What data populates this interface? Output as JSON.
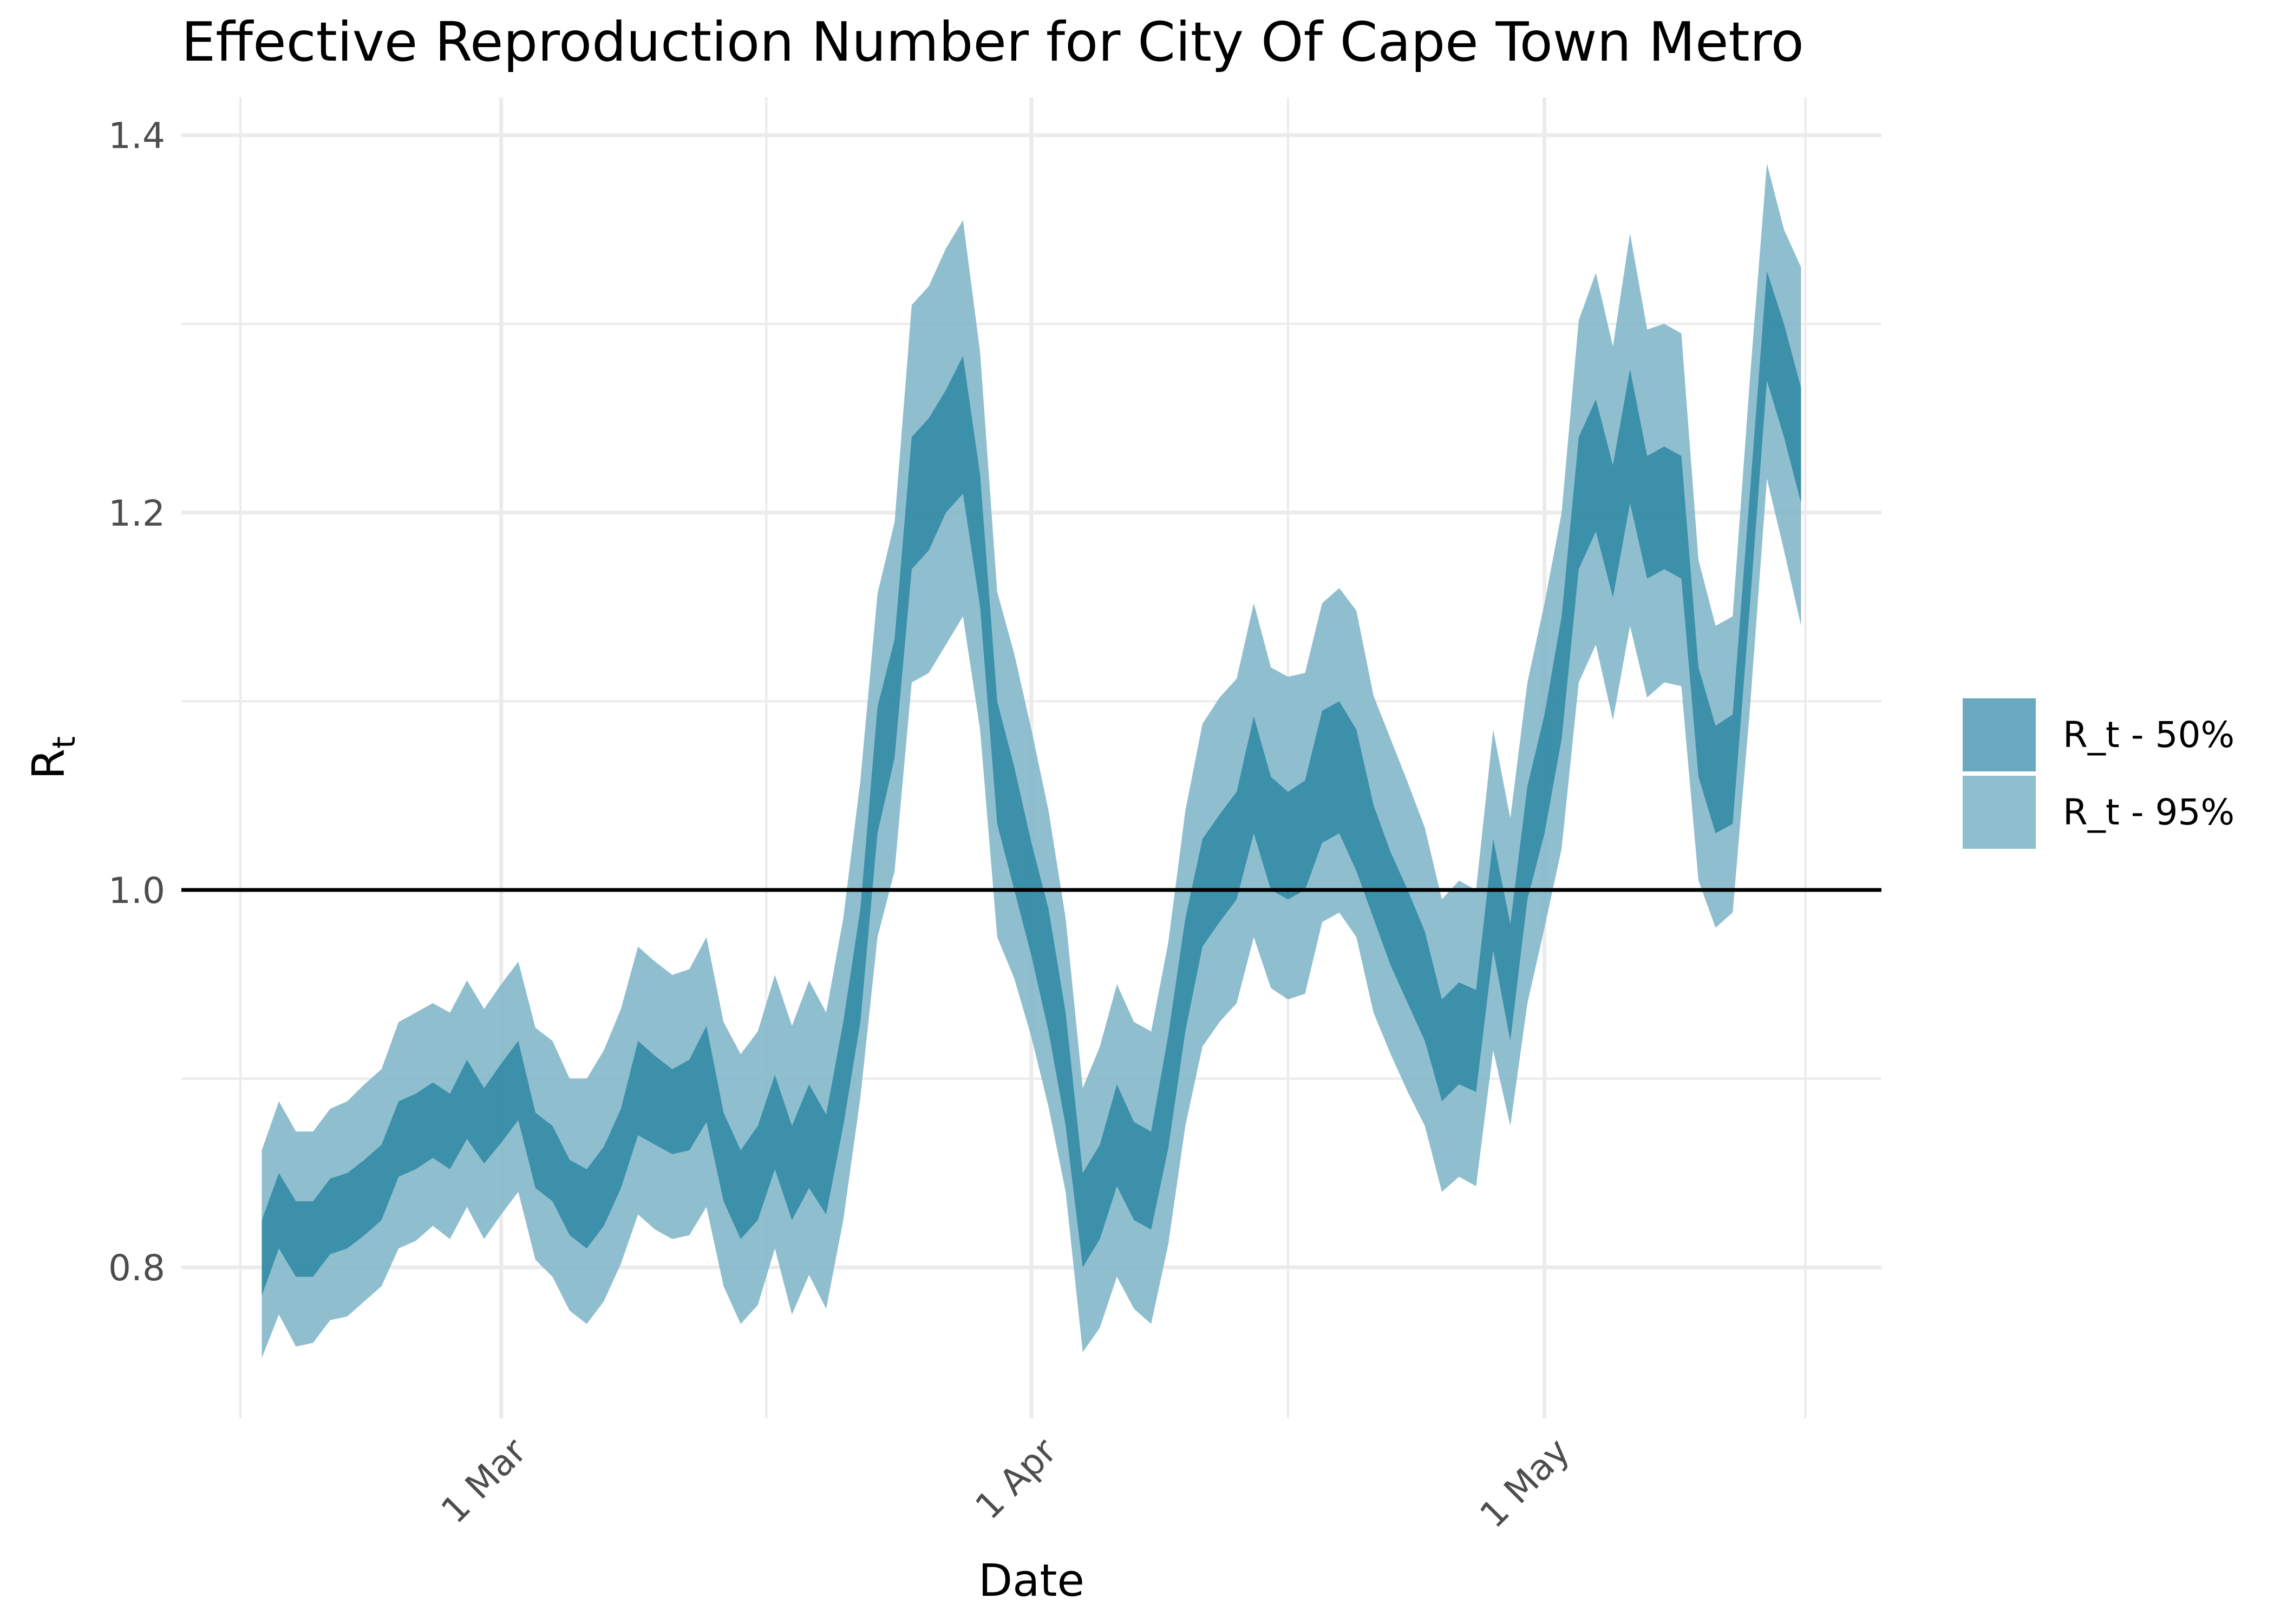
{
  "chart_data": {
    "type": "area",
    "title": "Effective Reproduction Number for City Of Cape Town Metro",
    "xlabel": "Date",
    "ylabel_main": "R",
    "ylabel_sub": "t",
    "x_start": "2021-02-15",
    "ylim": [
      0.72,
      1.42
    ],
    "yticks": [
      0.8,
      1.0,
      1.2,
      1.4
    ],
    "ytick_labels": [
      "0.8",
      "1.0",
      "1.2",
      "1.4"
    ],
    "xticks": [
      {
        "date": "2021-03-01",
        "label": "1 Mar"
      },
      {
        "date": "2021-04-01",
        "label": "1 Apr"
      },
      {
        "date": "2021-05-01",
        "label": "1 May"
      }
    ],
    "reference_line": 1.0,
    "grid": true,
    "legend_position": "right",
    "colors": {
      "band_50": "#2e87a3",
      "band_95": "#7fb6c8",
      "reference": "#000000",
      "grid": "#ebebeb"
    },
    "series": [
      {
        "name": "R_t - 50%",
        "lower": [
          0.785,
          0.81,
          0.795,
          0.795,
          0.807,
          0.81,
          0.817,
          0.825,
          0.848,
          0.852,
          0.858,
          0.852,
          0.868,
          0.855,
          0.866,
          0.878,
          0.842,
          0.835,
          0.817,
          0.81,
          0.822,
          0.842,
          0.87,
          0.865,
          0.86,
          0.862,
          0.877,
          0.835,
          0.815,
          0.825,
          0.852,
          0.825,
          0.842,
          0.828,
          0.875,
          0.93,
          1.03,
          1.07,
          1.17,
          1.18,
          1.2,
          1.21,
          1.15,
          1.035,
          1.0,
          0.965,
          0.925,
          0.875,
          0.8,
          0.815,
          0.843,
          0.825,
          0.82,
          0.863,
          0.925,
          0.97,
          0.983,
          0.995,
          1.03,
          1.0,
          0.995,
          1.0,
          1.025,
          1.03,
          1.01,
          0.985,
          0.96,
          0.94,
          0.92,
          0.888,
          0.897,
          0.893,
          0.968,
          0.92,
          0.995,
          1.03,
          1.08,
          1.17,
          1.19,
          1.155,
          1.205,
          1.165,
          1.17,
          1.165,
          1.06,
          1.03,
          1.035,
          1.15,
          1.27,
          1.24,
          1.205
        ],
        "upper": [
          0.825,
          0.85,
          0.835,
          0.835,
          0.847,
          0.85,
          0.857,
          0.865,
          0.888,
          0.892,
          0.898,
          0.892,
          0.91,
          0.895,
          0.908,
          0.92,
          0.882,
          0.875,
          0.857,
          0.852,
          0.864,
          0.884,
          0.92,
          0.912,
          0.905,
          0.91,
          0.928,
          0.882,
          0.862,
          0.875,
          0.902,
          0.875,
          0.897,
          0.881,
          0.93,
          0.99,
          1.097,
          1.133,
          1.24,
          1.25,
          1.265,
          1.283,
          1.22,
          1.1,
          1.065,
          1.025,
          0.99,
          0.935,
          0.85,
          0.865,
          0.897,
          0.877,
          0.872,
          0.923,
          0.985,
          1.027,
          1.04,
          1.052,
          1.092,
          1.06,
          1.052,
          1.058,
          1.095,
          1.1,
          1.085,
          1.045,
          1.02,
          1.0,
          0.978,
          0.942,
          0.951,
          0.947,
          1.027,
          0.982,
          1.055,
          1.093,
          1.145,
          1.24,
          1.26,
          1.225,
          1.276,
          1.23,
          1.235,
          1.23,
          1.118,
          1.087,
          1.093,
          1.21,
          1.328,
          1.3,
          1.266
        ]
      },
      {
        "name": "R_t - 95%",
        "lower": [
          0.752,
          0.775,
          0.758,
          0.76,
          0.772,
          0.774,
          0.782,
          0.79,
          0.81,
          0.814,
          0.822,
          0.815,
          0.832,
          0.815,
          0.828,
          0.84,
          0.804,
          0.795,
          0.777,
          0.77,
          0.782,
          0.802,
          0.828,
          0.82,
          0.815,
          0.817,
          0.832,
          0.79,
          0.77,
          0.78,
          0.81,
          0.775,
          0.796,
          0.778,
          0.825,
          0.89,
          0.975,
          1.01,
          1.11,
          1.115,
          1.13,
          1.145,
          1.085,
          0.975,
          0.953,
          0.922,
          0.885,
          0.84,
          0.755,
          0.768,
          0.795,
          0.778,
          0.77,
          0.812,
          0.875,
          0.917,
          0.93,
          0.94,
          0.975,
          0.948,
          0.942,
          0.945,
          0.983,
          0.988,
          0.975,
          0.935,
          0.913,
          0.893,
          0.875,
          0.84,
          0.848,
          0.843,
          0.915,
          0.875,
          0.94,
          0.98,
          1.022,
          1.11,
          1.13,
          1.09,
          1.14,
          1.102,
          1.11,
          1.108,
          1.005,
          0.98,
          0.988,
          1.095,
          1.218,
          1.18,
          1.14
        ],
        "upper": [
          0.862,
          0.888,
          0.872,
          0.872,
          0.884,
          0.888,
          0.897,
          0.905,
          0.93,
          0.935,
          0.94,
          0.935,
          0.952,
          0.937,
          0.95,
          0.962,
          0.927,
          0.92,
          0.9,
          0.9,
          0.915,
          0.937,
          0.97,
          0.962,
          0.955,
          0.958,
          0.975,
          0.93,
          0.913,
          0.925,
          0.955,
          0.928,
          0.952,
          0.935,
          0.985,
          1.058,
          1.157,
          1.195,
          1.31,
          1.32,
          1.34,
          1.355,
          1.285,
          1.158,
          1.125,
          1.085,
          1.042,
          0.985,
          0.895,
          0.917,
          0.95,
          0.93,
          0.925,
          0.972,
          1.042,
          1.088,
          1.102,
          1.112,
          1.152,
          1.118,
          1.113,
          1.115,
          1.152,
          1.16,
          1.148,
          1.103,
          1.08,
          1.057,
          1.033,
          0.995,
          1.005,
          1.0,
          1.085,
          1.038,
          1.11,
          1.152,
          1.2,
          1.302,
          1.327,
          1.288,
          1.348,
          1.297,
          1.3,
          1.295,
          1.175,
          1.14,
          1.145,
          1.27,
          1.385,
          1.35,
          1.33
        ]
      }
    ]
  }
}
